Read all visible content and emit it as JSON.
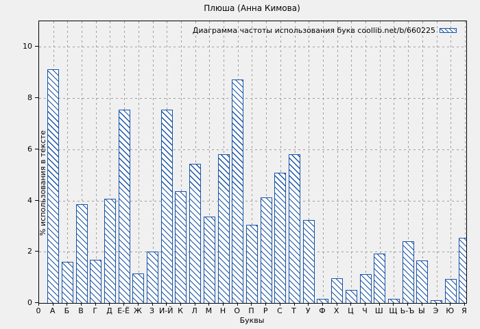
{
  "chart_data": {
    "type": "bar",
    "title": "Плюша (Анна Кимова)",
    "legend_label": "Диаграмма частоты использования букв coollib.net/b/660225",
    "legend_position": "top-right",
    "xlabel": "Буквы",
    "ylabel": "% использования в тексте",
    "origin_tick_label": "0",
    "categories": [
      "А",
      "Б",
      "В",
      "Г",
      "Д",
      "Е-Ё",
      "Ж",
      "З",
      "И-Й",
      "К",
      "Л",
      "М",
      "Н",
      "О",
      "П",
      "Р",
      "С",
      "Т",
      "У",
      "Ф",
      "Х",
      "Ц",
      "Ч",
      "Ш",
      "Щ",
      "Ь-Ъ",
      "Ы",
      "Э",
      "Ю",
      "Я"
    ],
    "values": [
      9.12,
      1.61,
      3.86,
      1.68,
      4.07,
      7.56,
      1.16,
      2.01,
      7.55,
      4.37,
      5.44,
      3.38,
      5.8,
      8.72,
      3.05,
      4.13,
      5.08,
      5.8,
      3.25,
      0.15,
      0.97,
      0.5,
      1.13,
      1.94,
      0.15,
      2.42,
      1.67,
      0.1,
      0.95,
      2.54
    ],
    "yticks": [
      0,
      2,
      4,
      6,
      8,
      10
    ],
    "ylim": [
      0,
      11
    ],
    "grid": true,
    "colors": {
      "bar_edge": "#1753a6",
      "bar_fill": "#fdfdfd",
      "hatch": "#1753a6",
      "grid": "#9c9c9c",
      "axis": "#000000",
      "background": "#f0f0f0"
    }
  }
}
